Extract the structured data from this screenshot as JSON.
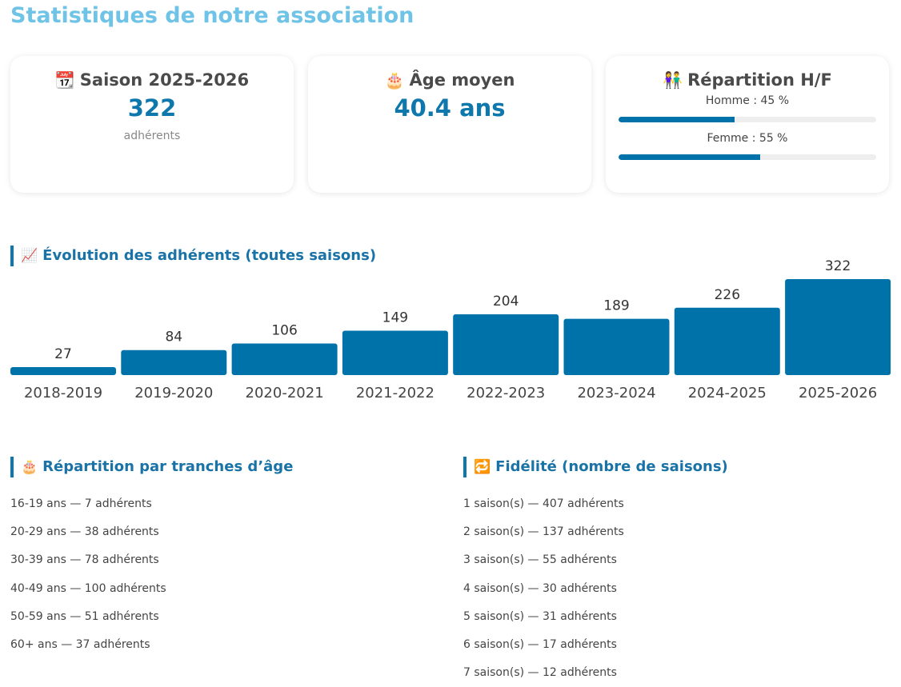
{
  "page": {
    "title": "Statistiques de notre association"
  },
  "cards": {
    "season": {
      "icon": "calendar-icon",
      "emoji": "📆",
      "label": "Saison 2025-2026",
      "value": "322",
      "sub": "adhérents"
    },
    "age": {
      "icon": "birthday-cake-icon",
      "emoji": "🎂",
      "label": "Âge moyen",
      "value": "40.4 ans"
    },
    "gender": {
      "icon": "couple-icon",
      "emoji": "👫",
      "label": "Répartition H/F",
      "items": [
        {
          "label": "Homme : 45 %",
          "percent": 45
        },
        {
          "label": "Femme : 55 %",
          "percent": 55
        }
      ]
    }
  },
  "evolution": {
    "icon": "chart-increasing-icon",
    "emoji": "📈",
    "title": "Évolution des adhérents (toutes saisons)"
  },
  "chart_data": {
    "type": "bar",
    "categories": [
      "2018-2019",
      "2019-2020",
      "2020-2021",
      "2021-2022",
      "2022-2023",
      "2023-2024",
      "2024-2025",
      "2025-2026"
    ],
    "values": [
      27,
      84,
      106,
      149,
      204,
      189,
      226,
      322
    ],
    "title": "Évolution des adhérents (toutes saisons)",
    "xlabel": "",
    "ylabel": "",
    "ylim": [
      0,
      322
    ],
    "grid": false,
    "legend": "none",
    "color": "#0072aa"
  },
  "age_groups": {
    "icon": "birthday-cake-icon",
    "emoji": "🎂",
    "title": "Répartition par tranches d’âge",
    "items": [
      "16-19 ans — 7 adhérents",
      "20-29 ans — 38 adhérents",
      "30-39 ans — 78 adhérents",
      "40-49 ans — 100 adhérents",
      "50-59 ans — 51 adhérents",
      "60+ ans — 37 adhérents"
    ]
  },
  "loyalty": {
    "icon": "repeat-icon",
    "emoji": "🔁",
    "title": "Fidélité (nombre de saisons)",
    "items": [
      "1 saison(s) — 407 adhérents",
      "2 saison(s) — 137 adhérents",
      "3 saison(s) — 55 adhérents",
      "4 saison(s) — 30 adhérents",
      "5 saison(s) — 31 adhérents",
      "6 saison(s) — 17 adhérents",
      "7 saison(s) — 12 adhérents"
    ]
  },
  "colors": {
    "accent": "#0e77ab",
    "title": "#6ec3e6",
    "bar": "#0072aa",
    "track": "#eeeeee"
  }
}
